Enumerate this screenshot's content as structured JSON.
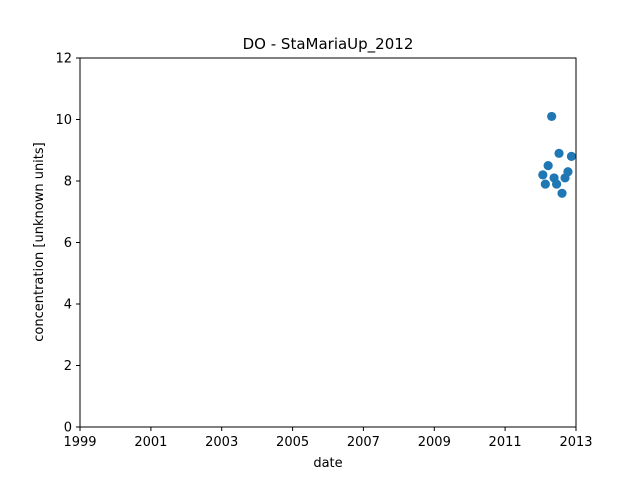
{
  "chart_data": {
    "type": "scatter",
    "title": "DO - StaMariaUp_2012",
    "xlabel": "date",
    "ylabel": "concentration [unknown units]",
    "xlim": [
      "1999-01-01",
      "2013-01-01"
    ],
    "ylim": [
      0,
      12
    ],
    "xticks": [
      "1999",
      "2001",
      "2003",
      "2005",
      "2007",
      "2009",
      "2011",
      "2013"
    ],
    "yticks": [
      0,
      2,
      4,
      6,
      8,
      10,
      12
    ],
    "grid": false,
    "marker_color": "#1f77b4",
    "points": [
      {
        "x": "2012-01-25",
        "y": 8.2
      },
      {
        "x": "2012-02-20",
        "y": 7.9
      },
      {
        "x": "2012-03-20",
        "y": 8.5
      },
      {
        "x": "2012-04-25",
        "y": 10.1
      },
      {
        "x": "2012-05-20",
        "y": 8.1
      },
      {
        "x": "2012-06-15",
        "y": 7.9
      },
      {
        "x": "2012-07-10",
        "y": 8.9
      },
      {
        "x": "2012-08-10",
        "y": 7.6
      },
      {
        "x": "2012-09-10",
        "y": 8.1
      },
      {
        "x": "2012-10-10",
        "y": 8.3
      },
      {
        "x": "2012-11-15",
        "y": 8.8
      }
    ]
  }
}
